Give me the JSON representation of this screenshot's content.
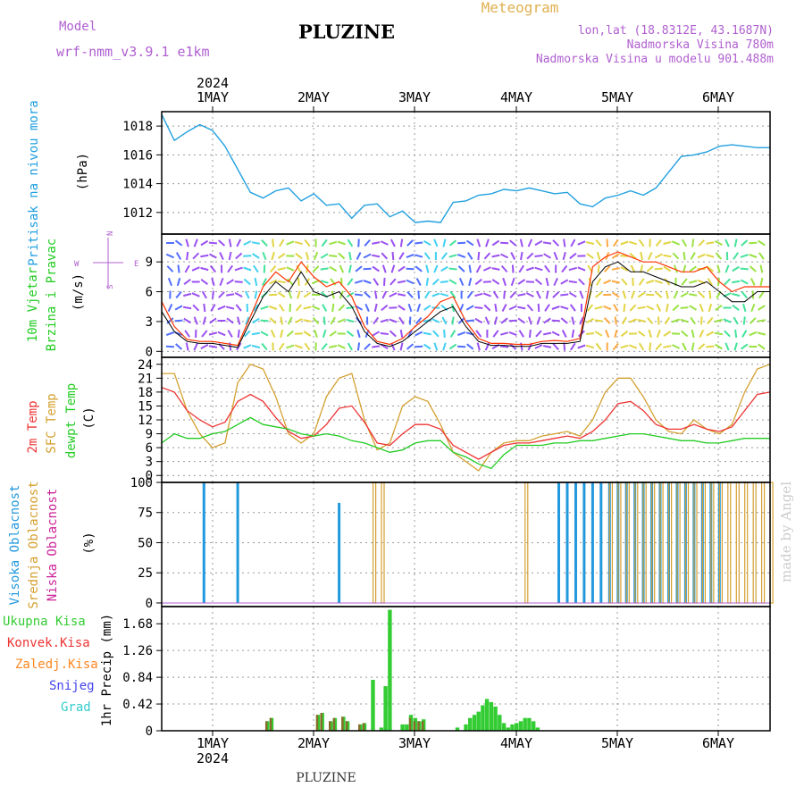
{
  "header": {
    "model_label": "Model",
    "model_name": "wrf-nmm_v3.9.1  e1km",
    "title": "PLUZINE",
    "product": "Meteogram",
    "lonlat": "lon,lat (18.8312E, 43.1687N)",
    "elevation": "Nadmorska Visina 780m",
    "model_elevation": "Nadmorska Visina u modelu 901.488m"
  },
  "x_axis": {
    "year": "2024",
    "days": [
      "1MAY",
      "2MAY",
      "3MAY",
      "4MAY",
      "5MAY",
      "6MAY"
    ]
  },
  "footer": {
    "station": "PLUZINE",
    "credit": "made by Angel"
  },
  "wind_compass": {
    "north": "N",
    "west": "W",
    "east": "E",
    "south": "S"
  },
  "colors": {
    "pressure": "#22a0e0",
    "wind_speed": "#000000",
    "wind_gust": "#ff3300",
    "temp_2m": "#ee3333",
    "temp_sfc": "#d4a030",
    "dewpoint": "#22cc22",
    "cloud_high": "#2299dd",
    "cloud_mid": "#d4a030",
    "cloud_low": "#cc2299",
    "precip_total": "#33cc33",
    "precip_conv": "#ee3333",
    "precip_strat": "#ff8822",
    "snow": "#4444ee",
    "graupel": "#33cccc"
  },
  "chart_data": [
    {
      "type": "line",
      "ylabel_title": "Pritisak na nivou mora",
      "ylabel_unit": "(hPa)",
      "yticks": [
        1012,
        1014,
        1016,
        1018
      ],
      "ylim": [
        1010.5,
        1019
      ],
      "x_hours": [
        0,
        3,
        6,
        9,
        12,
        15,
        18,
        21,
        24,
        27,
        30,
        33,
        36,
        39,
        42,
        45,
        48,
        51,
        54,
        57,
        60,
        63,
        66,
        69,
        72,
        75,
        78,
        81,
        84,
        87,
        90,
        93,
        96,
        99,
        102,
        105,
        108,
        111,
        114,
        117,
        120,
        123,
        126,
        129,
        132,
        135,
        138,
        141,
        144
      ],
      "values": [
        1018.8,
        1017.0,
        1017.6,
        1018.1,
        1017.7,
        1016.6,
        1015.0,
        1013.4,
        1013.0,
        1013.5,
        1013.7,
        1012.8,
        1013.3,
        1012.5,
        1012.6,
        1011.6,
        1012.5,
        1012.6,
        1011.7,
        1012.1,
        1011.3,
        1011.4,
        1011.3,
        1012.7,
        1012.8,
        1013.2,
        1013.3,
        1013.6,
        1013.5,
        1013.7,
        1013.5,
        1013.3,
        1013.4,
        1012.6,
        1012.4,
        1013.0,
        1013.2,
        1013.5,
        1013.2,
        1013.7,
        1014.8,
        1015.9,
        1016.0,
        1016.2,
        1016.6,
        1016.7,
        1016.6,
        1016.5,
        1016.5
      ]
    },
    {
      "type": "line",
      "ylabel_title": "10m Vjetar",
      "ylabel_sub": "Brzina i Pravac",
      "ylabel_unit": "(m/s)",
      "yticks": [
        0,
        3,
        6,
        9
      ],
      "ylim": [
        -0.6,
        11.8
      ],
      "x_hours": [
        0,
        3,
        6,
        9,
        12,
        15,
        18,
        21,
        24,
        27,
        30,
        33,
        36,
        39,
        42,
        45,
        48,
        51,
        54,
        57,
        60,
        63,
        66,
        69,
        72,
        75,
        78,
        81,
        84,
        87,
        90,
        93,
        96,
        99,
        102,
        105,
        108,
        111,
        114,
        117,
        120,
        123,
        126,
        129,
        132,
        135,
        138,
        141,
        144
      ],
      "series": [
        {
          "values": [
            4,
            2,
            1,
            0.8,
            0.8,
            0.6,
            0.4,
            3,
            5.5,
            7,
            6,
            8,
            6,
            5.5,
            6,
            4.5,
            2,
            0.8,
            0.5,
            1,
            2,
            3,
            4,
            4.5,
            2.5,
            1,
            0.6,
            0.6,
            0.5,
            0.5,
            0.8,
            0.8,
            0.8,
            1,
            7,
            8.5,
            9,
            8,
            8,
            7.5,
            7,
            6.5,
            6.5,
            7,
            6,
            5,
            5,
            6,
            6
          ]
        },
        {
          "values": [
            5,
            2.5,
            1.2,
            1,
            1,
            0.8,
            0.6,
            3.5,
            6.5,
            8,
            7,
            9,
            7.5,
            6.5,
            7,
            5.5,
            2.5,
            1,
            0.7,
            1.3,
            2.5,
            3.5,
            5,
            5.5,
            3,
            1.3,
            0.8,
            0.8,
            0.7,
            0.7,
            1,
            1.1,
            1,
            1.3,
            8.5,
            9.5,
            10,
            9.5,
            9,
            9,
            8.5,
            8,
            8,
            8.5,
            7,
            6,
            6.5,
            6.5,
            6.5
          ]
        }
      ]
    },
    {
      "type": "line",
      "ylabel_titles": [
        "2m Temp",
        "SFC Temp",
        "dewpt Temp"
      ],
      "ylabel_unit": "(C)",
      "yticks": [
        0,
        3,
        6,
        9,
        12,
        15,
        18,
        21,
        24
      ],
      "ylim": [
        -1.5,
        25.5
      ],
      "x_hours": [
        0,
        3,
        6,
        9,
        12,
        15,
        18,
        21,
        24,
        27,
        30,
        33,
        36,
        39,
        42,
        45,
        48,
        51,
        54,
        57,
        60,
        63,
        66,
        69,
        72,
        75,
        78,
        81,
        84,
        87,
        90,
        93,
        96,
        99,
        102,
        105,
        108,
        111,
        114,
        117,
        120,
        123,
        126,
        129,
        132,
        135,
        138,
        141,
        144
      ],
      "series": [
        {
          "name": "2m Temp",
          "values": [
            19,
            18,
            14,
            12,
            10.5,
            11.5,
            16,
            17.5,
            16,
            12.5,
            9.5,
            8,
            8.5,
            11,
            14.5,
            15,
            11.5,
            7,
            6.5,
            9,
            11,
            11,
            10,
            6.5,
            5,
            3.5,
            5,
            6.5,
            7,
            7,
            7.5,
            8,
            8.5,
            8,
            9.5,
            12,
            15.5,
            16,
            14,
            11,
            10,
            10,
            11,
            10,
            9.5,
            10.5,
            14,
            17.5,
            18
          ]
        },
        {
          "name": "SFC Temp",
          "values": [
            22,
            22,
            14,
            9,
            6,
            7,
            20,
            24,
            23,
            17,
            9,
            7,
            9,
            17,
            21,
            22,
            12,
            5.5,
            7,
            15,
            17,
            16,
            11,
            5,
            3,
            1,
            5,
            7,
            7.5,
            7.5,
            8.5,
            9,
            9.5,
            8.5,
            12,
            18,
            21,
            21,
            17,
            12,
            9.5,
            9,
            12,
            10,
            9,
            11,
            18,
            23,
            24
          ]
        },
        {
          "name": "dewpt Temp",
          "values": [
            7,
            9,
            8,
            8,
            9,
            9.5,
            11,
            12.5,
            11,
            10.5,
            10,
            9,
            8.5,
            9,
            8.5,
            7.5,
            7,
            6,
            5,
            5.5,
            7,
            7.5,
            7.5,
            5,
            4,
            2.5,
            1.5,
            4.5,
            6.5,
            6.5,
            6.5,
            7,
            7,
            7.5,
            7.5,
            8,
            8.5,
            9,
            9,
            8.5,
            8,
            7.5,
            7.5,
            7,
            7,
            7.5,
            8,
            8,
            8
          ]
        }
      ]
    },
    {
      "type": "bar",
      "ylabel_titles": [
        "Visoka Oblacnost",
        "Srednja Oblacnost",
        "Niska Oblacnost"
      ],
      "ylabel_unit": "(%)",
      "yticks": [
        0,
        25,
        50,
        75,
        100
      ],
      "ylim": [
        -3,
        100
      ],
      "x_hours": [
        0,
        2,
        4,
        6,
        8,
        10,
        12,
        14,
        16,
        18,
        20,
        22,
        24,
        26,
        28,
        30,
        32,
        34,
        36,
        38,
        40,
        42,
        44,
        46,
        48,
        50,
        52,
        54,
        56,
        58,
        60,
        62,
        64,
        66,
        68,
        70,
        72,
        74,
        76,
        78,
        80,
        82,
        84,
        86,
        88,
        90,
        92,
        94,
        96,
        98,
        100,
        102,
        104,
        106,
        108,
        110,
        112,
        114,
        116,
        118,
        120,
        122,
        124,
        126,
        128,
        130,
        132,
        134,
        136,
        138,
        140,
        142,
        144
      ],
      "series": [
        {
          "name": "Visoka Oblacnost",
          "values": [
            0,
            0,
            0,
            0,
            0,
            100,
            0,
            0,
            0,
            100,
            0,
            0,
            0,
            0,
            0,
            0,
            0,
            0,
            0,
            0,
            0,
            83,
            0,
            0,
            0,
            0,
            0,
            0,
            0,
            0,
            0,
            0,
            0,
            0,
            0,
            0,
            0,
            0,
            0,
            0,
            0,
            0,
            0,
            0,
            0,
            0,
            0,
            100,
            100,
            100,
            100,
            100,
            100,
            100,
            100,
            100,
            100,
            100,
            100,
            100,
            100,
            100,
            100,
            100,
            100,
            100,
            100,
            0,
            0,
            0,
            0,
            0,
            0
          ]
        },
        {
          "name": "Srednja Oblacnost",
          "values": [
            0,
            0,
            0,
            0,
            0,
            0,
            0,
            0,
            0,
            0,
            0,
            0,
            0,
            0,
            0,
            0,
            0,
            0,
            0,
            0,
            0,
            0,
            0,
            0,
            0,
            100,
            100,
            0,
            0,
            0,
            0,
            0,
            0,
            0,
            0,
            0,
            0,
            0,
            0,
            0,
            0,
            0,
            0,
            100,
            0,
            0,
            0,
            0,
            0,
            0,
            0,
            0,
            0,
            100,
            100,
            100,
            100,
            100,
            100,
            100,
            100,
            100,
            100,
            100,
            100,
            100,
            100,
            100,
            100,
            100,
            100,
            100,
            100
          ]
        },
        {
          "name": "Niska Oblacnost",
          "values": [
            0,
            0,
            0,
            0,
            0,
            0,
            0,
            0,
            0,
            0,
            0,
            0,
            0,
            0,
            0,
            0,
            0,
            0,
            0,
            0,
            0,
            0,
            0,
            0,
            0,
            0,
            0,
            0,
            0,
            0,
            0,
            0,
            0,
            0,
            0,
            0,
            0,
            0,
            0,
            0,
            0,
            0,
            0,
            0,
            0,
            0,
            0,
            0,
            0,
            0,
            0,
            0,
            0,
            0,
            0,
            0,
            0,
            0,
            0,
            0,
            0,
            0,
            0,
            0,
            0,
            0,
            0,
            0,
            0,
            0,
            0,
            0,
            0
          ]
        }
      ]
    },
    {
      "type": "bar",
      "ylabel_unit": "1hr Precip (mm)",
      "legend": [
        "Ukupna Kisa",
        "Konvek.Kisa",
        "Zaledj.Kisa",
        "Snijeg",
        "Grad"
      ],
      "yticks": [
        0,
        0.42,
        0.84,
        1.26,
        1.68
      ],
      "ylim": [
        0,
        1.95
      ],
      "x_hours": [
        25,
        26,
        37,
        38,
        40,
        41,
        43,
        44,
        47,
        48,
        50,
        52,
        53,
        54,
        57,
        58,
        59,
        60,
        61,
        62,
        70,
        72,
        73,
        74,
        75,
        76,
        77,
        78,
        79,
        80,
        81,
        82,
        83,
        84,
        85,
        86,
        87,
        88,
        89
      ],
      "series": [
        {
          "name": "Ukupna Kisa",
          "values": [
            0.15,
            0.2,
            0.25,
            0.28,
            0.15,
            0.2,
            0.22,
            0.15,
            0.1,
            0.12,
            0.8,
            0.05,
            0.7,
            1.9,
            0.1,
            0.1,
            0.25,
            0.2,
            0.15,
            0.18,
            0.05,
            0.1,
            0.2,
            0.25,
            0.3,
            0.4,
            0.5,
            0.45,
            0.38,
            0.25,
            0.12,
            0.05,
            0.1,
            0.12,
            0.15,
            0.2,
            0.2,
            0.15,
            0.05
          ]
        },
        {
          "name": "Konvek.Kisa",
          "values": [
            0.15,
            0.2,
            0.25,
            0.28,
            0.15,
            0.2,
            0.22,
            0.15,
            0.1,
            0.12,
            0,
            0,
            0,
            0,
            0,
            0,
            0.2,
            0.15,
            0.15,
            0.15,
            0,
            0,
            0,
            0,
            0,
            0,
            0,
            0,
            0,
            0,
            0,
            0,
            0,
            0,
            0,
            0,
            0,
            0,
            0
          ]
        }
      ]
    }
  ]
}
